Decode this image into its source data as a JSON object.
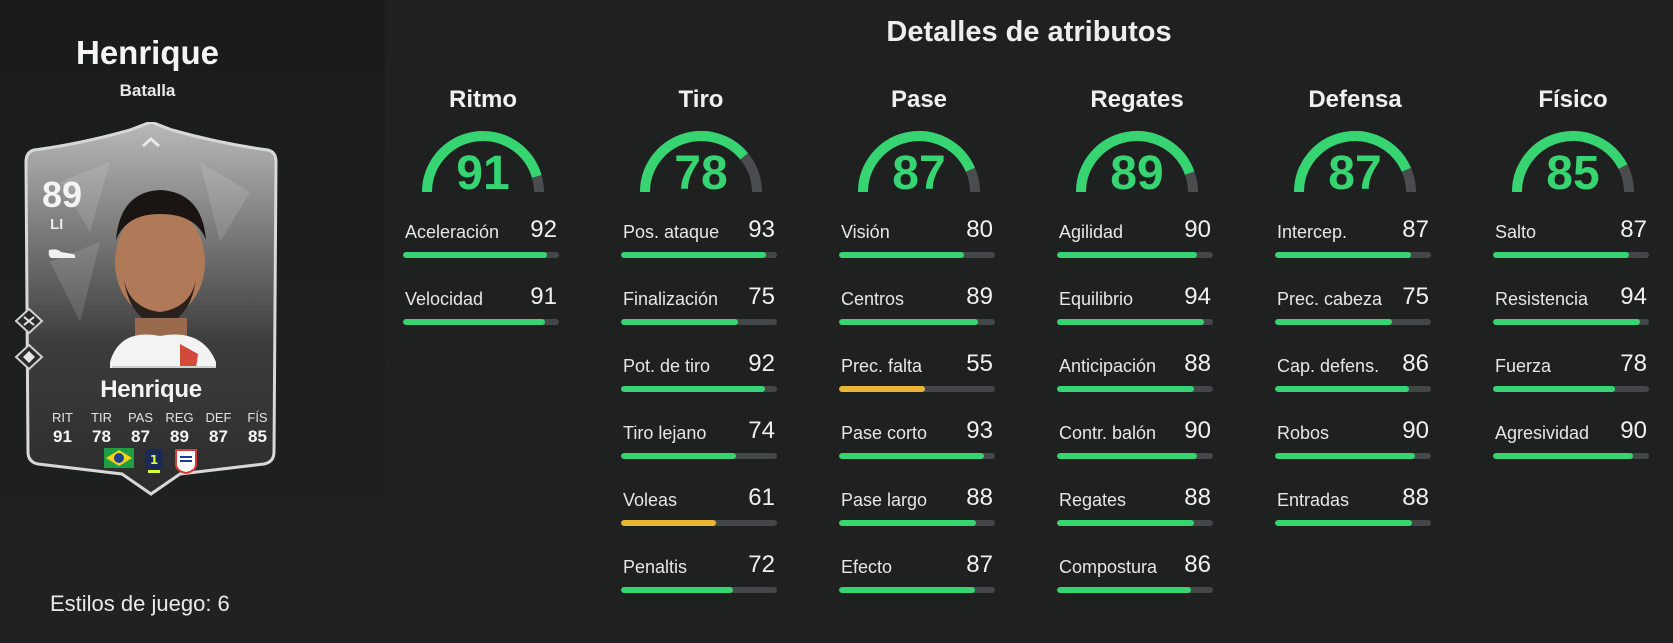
{
  "player": {
    "name": "Henrique",
    "variant": "Batalla",
    "card_name": "Henrique",
    "rating": "89",
    "position": "LI",
    "stats": [
      {
        "label": "RIT",
        "value": "91"
      },
      {
        "label": "TIR",
        "value": "78"
      },
      {
        "label": "PAS",
        "value": "87"
      },
      {
        "label": "REG",
        "value": "89"
      },
      {
        "label": "DEF",
        "value": "87"
      },
      {
        "label": "FÍS",
        "value": "85"
      }
    ],
    "flags": [
      "brazil-flag-icon",
      "ligue1-logo-icon",
      "lyon-crest-icon"
    ]
  },
  "playstyles": {
    "label": "Estilos de juego: 6"
  },
  "details": {
    "title": "Detalles de atributos",
    "colors": {
      "high": "#37d472",
      "mid": "#e8b534",
      "track": "#444747"
    },
    "groups": [
      {
        "name": "Ritmo",
        "value": 91,
        "attrs": [
          {
            "label": "Aceleración",
            "value": 92
          },
          {
            "label": "Velocidad",
            "value": 91
          }
        ]
      },
      {
        "name": "Tiro",
        "value": 78,
        "attrs": [
          {
            "label": "Pos. ataque",
            "value": 93
          },
          {
            "label": "Finalización",
            "value": 75
          },
          {
            "label": "Pot. de tiro",
            "value": 92
          },
          {
            "label": "Tiro lejano",
            "value": 74
          },
          {
            "label": "Voleas",
            "value": 61
          },
          {
            "label": "Penaltis",
            "value": 72
          }
        ]
      },
      {
        "name": "Pase",
        "value": 87,
        "attrs": [
          {
            "label": "Visión",
            "value": 80
          },
          {
            "label": "Centros",
            "value": 89
          },
          {
            "label": "Prec. falta",
            "value": 55
          },
          {
            "label": "Pase corto",
            "value": 93
          },
          {
            "label": "Pase largo",
            "value": 88
          },
          {
            "label": "Efecto",
            "value": 87
          }
        ]
      },
      {
        "name": "Regates",
        "value": 89,
        "attrs": [
          {
            "label": "Agilidad",
            "value": 90
          },
          {
            "label": "Equilibrio",
            "value": 94
          },
          {
            "label": "Anticipación",
            "value": 88
          },
          {
            "label": "Contr. balón",
            "value": 90
          },
          {
            "label": "Regates",
            "value": 88
          },
          {
            "label": "Compostura",
            "value": 86
          }
        ]
      },
      {
        "name": "Defensa",
        "value": 87,
        "attrs": [
          {
            "label": "Intercep.",
            "value": 87
          },
          {
            "label": "Prec. cabeza",
            "value": 75
          },
          {
            "label": "Cap. defens.",
            "value": 86
          },
          {
            "label": "Robos",
            "value": 90
          },
          {
            "label": "Entradas",
            "value": 88
          }
        ]
      },
      {
        "name": "Físico",
        "value": 85,
        "attrs": [
          {
            "label": "Salto",
            "value": 87
          },
          {
            "label": "Resistencia",
            "value": 94
          },
          {
            "label": "Fuerza",
            "value": 78
          },
          {
            "label": "Agresividad",
            "value": 90
          }
        ]
      }
    ]
  }
}
